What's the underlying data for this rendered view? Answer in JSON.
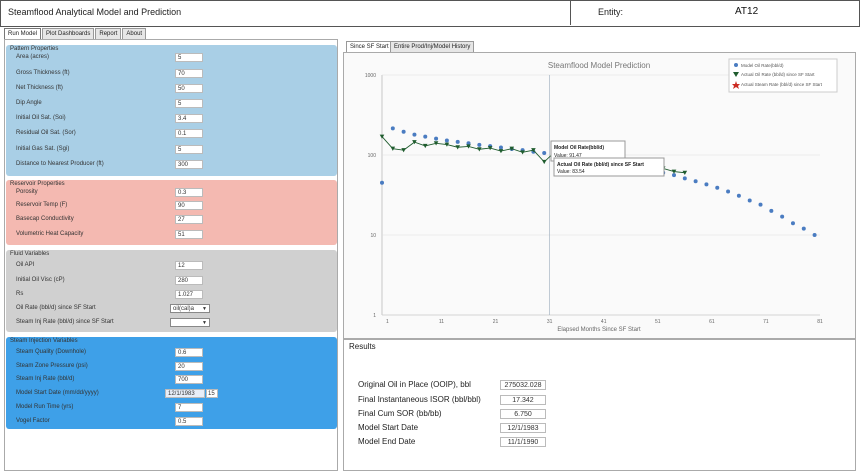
{
  "header": {
    "title": "Steamflood Analytical Model and Prediction",
    "entity_label": "Entity:",
    "entity_value": "AT12"
  },
  "tabs": [
    "Run Model",
    "Plot Dashboards",
    "Report",
    "About"
  ],
  "sections": {
    "pattern": {
      "title": "Pattern Properties",
      "rows": [
        {
          "label": "Area (acres)",
          "value": "5"
        },
        {
          "label": "Gross Thickness (ft)",
          "value": "70"
        },
        {
          "label": "Net Thickness (ft)",
          "value": "50"
        },
        {
          "label": "Dip Angle",
          "value": "5"
        },
        {
          "label": "Initial Oil Sat. (Soi)",
          "value": "3.4"
        },
        {
          "label": "Residual Oil Sat. (Sor)",
          "value": "0.1"
        },
        {
          "label": "Initial Gas Sat. (Sgi)",
          "value": "5"
        },
        {
          "label": "Distance to Nearest Producer (ft)",
          "value": "300"
        }
      ]
    },
    "reservoir": {
      "title": "Reservoir Properties",
      "rows": [
        {
          "label": "Porosity",
          "value": "0.3"
        },
        {
          "label": "Reservoir Temp (F)",
          "value": "90"
        },
        {
          "label": "Basecap Conductivity",
          "value": "27"
        },
        {
          "label": "Volumetric Heat Capacity",
          "value": "51"
        }
      ]
    },
    "fluid": {
      "title": "Fluid Variables",
      "rows": [
        {
          "label": "Oil API",
          "value": "12"
        },
        {
          "label": "Initial Oil Visc (cP)",
          "value": "280"
        },
        {
          "label": "Rs",
          "value": "1.027"
        }
      ],
      "dropdowns": [
        {
          "label": "Oil Rate (bbl/d) since SF Start",
          "value": "oil(cal)a"
        },
        {
          "label": "Steam Inj Rate (bbl/d) since SF Start",
          "value": ""
        }
      ]
    },
    "steam": {
      "title": "Steam Injection Variables",
      "rows": [
        {
          "label": "Steam Quality (Downhole)",
          "value": "0.6"
        },
        {
          "label": "Steam Zone Pressure (psi)",
          "value": "20"
        },
        {
          "label": "Steam Inj Rate (bbl/d)",
          "value": "700"
        },
        {
          "label": "Model Start Date (mm/dd/yyyy)",
          "value": "12/1/1983"
        },
        {
          "label": "Model Run Time (yrs)",
          "value": "7"
        },
        {
          "label": "Vogel Factor",
          "value": "0.5"
        }
      ],
      "date_picker": "15"
    }
  },
  "chart_tabs": [
    "Since SF Start",
    "Entire Prod/Inj/Model History"
  ],
  "chart_data": {
    "type": "scatter",
    "title": "Steamflood Model Prediction",
    "xlabel": "Elapsed Months Since SF Start",
    "ylabel": "",
    "yscale": "log",
    "ylim": [
      1,
      1000
    ],
    "xlim": [
      0,
      81
    ],
    "x_ticks": [
      "1",
      "11",
      "21",
      "31",
      "41",
      "51",
      "61",
      "71",
      "81"
    ],
    "y_ticks": [
      "1",
      "10",
      "100",
      "1000"
    ],
    "vline_x": 31,
    "legend": [
      "Model Oil Rate(bbl/d)",
      "Actual Oil Rate (bbl/d) since SF Start",
      "Actual Steam Rate (bbl/d) since SF Start"
    ],
    "series": [
      {
        "name": "Model Oil Rate(bbl/d)",
        "color": "#4a7cc1",
        "x": [
          0,
          2,
          4,
          6,
          8,
          10,
          12,
          14,
          16,
          18,
          20,
          22,
          24,
          26,
          28,
          30,
          32,
          34,
          36,
          38,
          40,
          42,
          44,
          46,
          48,
          50,
          52,
          54,
          56,
          58,
          60,
          62,
          64,
          66,
          68,
          70,
          72,
          74,
          76,
          78,
          80
        ],
        "values": [
          45,
          215,
          195,
          180,
          170,
          160,
          152,
          146,
          140,
          134,
          129,
          124,
          119,
          115,
          110,
          106,
          101,
          97,
          93,
          88,
          84,
          80,
          76,
          72,
          68,
          64,
          60,
          56,
          51,
          47,
          43,
          39,
          35,
          31,
          27,
          24,
          20,
          17,
          14,
          12,
          10
        ]
      },
      {
        "name": "Actual Oil Rate (bbl/d) since SF Start",
        "color": "#1f5c2e",
        "x": [
          0,
          2,
          4,
          6,
          8,
          10,
          12,
          14,
          16,
          18,
          20,
          22,
          24,
          26,
          28,
          30,
          32,
          34,
          36,
          38,
          40,
          42,
          44,
          46,
          48,
          50,
          52,
          54,
          56
        ],
        "values": [
          170,
          120,
          115,
          145,
          130,
          140,
          135,
          125,
          128,
          118,
          122,
          112,
          120,
          108,
          115,
          82,
          110,
          98,
          85,
          90,
          95,
          88,
          80,
          85,
          78,
          72,
          68,
          62,
          60
        ]
      }
    ],
    "tooltip1": {
      "title": "Model Oil Rate(bbl/d)",
      "value": "Value: 91.47"
    },
    "tooltip2": {
      "title": "Actual Oil Rate (bbl/d) since SF Start",
      "value": "Value: 83.54"
    }
  },
  "results": {
    "title": "Results",
    "rows": [
      {
        "label": "Original Oil in Place (OOIP), bbl",
        "value": "275032.028"
      },
      {
        "label": "Final Instantaneous ISOR (bbl/bbl)",
        "value": "17.342"
      },
      {
        "label": "Final Cum SOR (bb/bb)",
        "value": "6.750"
      },
      {
        "label": "Model Start Date",
        "value": "12/1/1983"
      },
      {
        "label": "Model End Date",
        "value": "11/1/1990"
      }
    ]
  },
  "colors": {
    "pattern": "#a9cfe6",
    "reservoir": "#f4b9b1",
    "fluid": "#d0d0d0",
    "steam": "#3ea0e8",
    "model": "#4a7cc1",
    "actual": "#1f5c2e",
    "steamrate": "#cc2b22"
  }
}
